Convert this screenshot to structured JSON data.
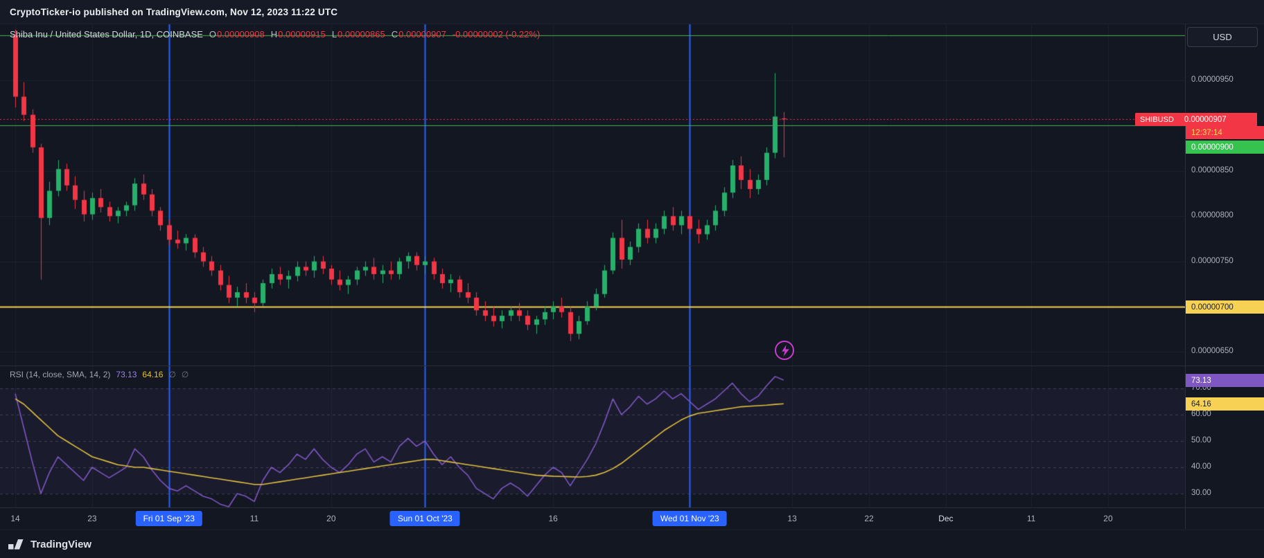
{
  "header": {
    "attribution": "CryptoTicker-io published on TradingView.com, Nov 12, 2023 11:22 UTC"
  },
  "main_legend": {
    "title": "Shiba Inu / United States Dollar, 1D, COINBASE",
    "open_label": "O",
    "open": "0.00000908",
    "high_label": "H",
    "high": "0.00000915",
    "low_label": "L",
    "low": "0.00000865",
    "close_label": "C",
    "close": "0.00000907",
    "change": "-0.00000002 (-0.22%)"
  },
  "price_axis": {
    "currency": "USD",
    "labels": [
      {
        "text": "0.00000950",
        "value": 9.5
      },
      {
        "text": "0.00000850",
        "value": 8.5
      },
      {
        "text": "0.00000800",
        "value": 8.0
      },
      {
        "text": "0.00000750",
        "value": 7.5
      },
      {
        "text": "0.00000650",
        "value": 6.5
      }
    ],
    "symbol_badge": {
      "symbol": "SHIBUSD",
      "price": "0.00000907",
      "countdown": "12:37:14"
    },
    "alert_badges": [
      {
        "text": "0.00000900",
        "color": "green",
        "value": 9.0
      },
      {
        "text": "0.00000700",
        "color": "yellow",
        "value": 7.0
      }
    ],
    "rsi_badges": [
      {
        "text": "73.13",
        "color": "purple",
        "value": 73.13
      },
      {
        "text": "64.16",
        "color": "yellow",
        "value": 64.16
      }
    ],
    "rsi_labels": [
      {
        "text": "70.00",
        "value": 70
      },
      {
        "text": "60.00",
        "value": 60
      },
      {
        "text": "50.00",
        "value": 50
      },
      {
        "text": "40.00",
        "value": 40
      },
      {
        "text": "30.00",
        "value": 30
      }
    ]
  },
  "rsi_legend": {
    "title": "RSI (14, close, SMA, 14, 2)",
    "value": "73.13",
    "sma_value": "64.16",
    "empty1": "∅",
    "empty2": "∅"
  },
  "footer": {
    "brand": "TradingView"
  },
  "chart_data": {
    "type": "candlestick+rsi",
    "symbol": "SHIBUSD",
    "exchange": "COINBASE",
    "interval": "1D",
    "start_date": "2023-08-14",
    "end_date": "2023-11-12",
    "price_unit": "1e-6 USD",
    "price_ylim": [
      6.35,
      10.12
    ],
    "grid_prices": [
      9.5,
      9.0,
      8.5,
      8.0,
      7.5,
      7.0,
      6.5
    ],
    "last_price": 9.07,
    "levels": [
      {
        "value": 10.0,
        "color": "#4caf50",
        "width": 1,
        "style": "solid",
        "name": "green-level-0.00001000"
      },
      {
        "value": 9.0,
        "color": "#4caf50",
        "width": 1,
        "style": "solid",
        "name": "green-level-0.00000900"
      },
      {
        "value": 7.0,
        "color": "#f7d154",
        "width": 2,
        "style": "solid",
        "name": "yellow-level-0.00000700"
      },
      {
        "value": 9.07,
        "color": "#f23645",
        "width": 1,
        "style": "dotted",
        "name": "last-price-line"
      }
    ],
    "event_line_indices": [
      18,
      48,
      79
    ],
    "x_ticks": [
      {
        "label": "14",
        "i": 0
      },
      {
        "label": "23",
        "i": 9
      },
      {
        "label": "Fri 01 Sep '23",
        "i": 18,
        "badge": true
      },
      {
        "label": "11",
        "i": 28
      },
      {
        "label": "20",
        "i": 37
      },
      {
        "label": "Sun 01 Oct '23",
        "i": 48,
        "badge": true
      },
      {
        "label": "16",
        "i": 63
      },
      {
        "label": "Wed 01 Nov '23",
        "i": 79,
        "badge": true
      },
      {
        "label": "13",
        "i": 91
      },
      {
        "label": "22",
        "i": 100
      },
      {
        "label": "Dec",
        "i": 109,
        "major": true
      },
      {
        "label": "11",
        "i": 119
      },
      {
        "label": "20",
        "i": 128
      }
    ],
    "candles": [
      [
        10.0,
        10.06,
        9.2,
        9.32
      ],
      [
        9.32,
        9.48,
        9.05,
        9.12
      ],
      [
        9.12,
        9.18,
        8.7,
        8.76
      ],
      [
        8.76,
        8.8,
        7.3,
        7.98
      ],
      [
        7.98,
        8.38,
        7.9,
        8.28
      ],
      [
        8.28,
        8.62,
        8.22,
        8.52
      ],
      [
        8.52,
        8.58,
        8.28,
        8.34
      ],
      [
        8.34,
        8.44,
        8.08,
        8.18
      ],
      [
        8.18,
        8.28,
        7.94,
        8.02
      ],
      [
        8.02,
        8.26,
        7.96,
        8.2
      ],
      [
        8.2,
        8.3,
        8.04,
        8.1
      ],
      [
        8.1,
        8.16,
        7.94,
        8.0
      ],
      [
        8.0,
        8.1,
        7.92,
        8.06
      ],
      [
        8.06,
        8.16,
        8.0,
        8.12
      ],
      [
        8.12,
        8.42,
        8.06,
        8.36
      ],
      [
        8.36,
        8.46,
        8.18,
        8.24
      ],
      [
        8.24,
        8.3,
        8.0,
        8.06
      ],
      [
        8.06,
        8.1,
        7.84,
        7.9
      ],
      [
        7.9,
        7.96,
        7.68,
        7.74
      ],
      [
        7.74,
        7.84,
        7.64,
        7.7
      ],
      [
        7.7,
        7.8,
        7.62,
        7.76
      ],
      [
        7.76,
        7.8,
        7.54,
        7.6
      ],
      [
        7.6,
        7.66,
        7.44,
        7.5
      ],
      [
        7.5,
        7.56,
        7.34,
        7.4
      ],
      [
        7.4,
        7.46,
        7.18,
        7.24
      ],
      [
        7.24,
        7.34,
        7.04,
        7.1
      ],
      [
        7.1,
        7.22,
        7.0,
        7.16
      ],
      [
        7.16,
        7.26,
        7.04,
        7.1
      ],
      [
        7.1,
        7.16,
        6.94,
        7.04
      ],
      [
        7.04,
        7.3,
        7.0,
        7.26
      ],
      [
        7.26,
        7.42,
        7.2,
        7.36
      ],
      [
        7.36,
        7.44,
        7.24,
        7.3
      ],
      [
        7.3,
        7.4,
        7.2,
        7.34
      ],
      [
        7.34,
        7.5,
        7.28,
        7.44
      ],
      [
        7.44,
        7.5,
        7.34,
        7.4
      ],
      [
        7.4,
        7.56,
        7.32,
        7.5
      ],
      [
        7.5,
        7.56,
        7.36,
        7.42
      ],
      [
        7.42,
        7.46,
        7.24,
        7.3
      ],
      [
        7.3,
        7.4,
        7.18,
        7.24
      ],
      [
        7.24,
        7.34,
        7.14,
        7.3
      ],
      [
        7.3,
        7.44,
        7.24,
        7.4
      ],
      [
        7.4,
        7.5,
        7.34,
        7.44
      ],
      [
        7.44,
        7.54,
        7.3,
        7.36
      ],
      [
        7.36,
        7.46,
        7.26,
        7.4
      ],
      [
        7.4,
        7.5,
        7.3,
        7.36
      ],
      [
        7.36,
        7.54,
        7.3,
        7.5
      ],
      [
        7.5,
        7.6,
        7.42,
        7.56
      ],
      [
        7.56,
        7.6,
        7.4,
        7.46
      ],
      [
        7.46,
        7.56,
        7.36,
        7.5
      ],
      [
        7.5,
        7.54,
        7.3,
        7.36
      ],
      [
        7.36,
        7.42,
        7.2,
        7.26
      ],
      [
        7.26,
        7.36,
        7.16,
        7.3
      ],
      [
        7.3,
        7.34,
        7.1,
        7.16
      ],
      [
        7.16,
        7.26,
        7.04,
        7.1
      ],
      [
        7.1,
        7.16,
        6.9,
        6.96
      ],
      [
        6.96,
        7.06,
        6.84,
        6.9
      ],
      [
        6.9,
        7.0,
        6.78,
        6.84
      ],
      [
        6.84,
        6.96,
        6.76,
        6.9
      ],
      [
        6.9,
        7.0,
        6.84,
        6.96
      ],
      [
        6.96,
        7.04,
        6.84,
        6.9
      ],
      [
        6.9,
        6.96,
        6.74,
        6.8
      ],
      [
        6.8,
        6.9,
        6.7,
        6.86
      ],
      [
        6.86,
        7.0,
        6.8,
        6.94
      ],
      [
        6.94,
        7.06,
        6.86,
        7.0
      ],
      [
        7.0,
        7.1,
        6.88,
        6.94
      ],
      [
        6.94,
        7.0,
        6.62,
        6.7
      ],
      [
        6.7,
        6.9,
        6.64,
        6.84
      ],
      [
        6.84,
        7.06,
        6.8,
        7.0
      ],
      [
        7.0,
        7.2,
        6.96,
        7.14
      ],
      [
        7.14,
        7.46,
        7.1,
        7.4
      ],
      [
        7.4,
        7.82,
        7.36,
        7.76
      ],
      [
        7.76,
        7.96,
        7.42,
        7.52
      ],
      [
        7.52,
        7.72,
        7.46,
        7.66
      ],
      [
        7.66,
        7.92,
        7.6,
        7.86
      ],
      [
        7.86,
        7.96,
        7.7,
        7.76
      ],
      [
        7.76,
        7.92,
        7.7,
        7.86
      ],
      [
        7.86,
        8.06,
        7.8,
        8.0
      ],
      [
        8.0,
        8.1,
        7.84,
        7.9
      ],
      [
        7.9,
        8.06,
        7.8,
        8.0
      ],
      [
        8.0,
        8.06,
        7.8,
        7.86
      ],
      [
        7.86,
        7.96,
        7.7,
        7.8
      ],
      [
        7.8,
        7.96,
        7.74,
        7.9
      ],
      [
        7.9,
        8.12,
        7.84,
        8.06
      ],
      [
        8.06,
        8.32,
        8.0,
        8.26
      ],
      [
        8.26,
        8.62,
        8.2,
        8.56
      ],
      [
        8.56,
        8.66,
        8.3,
        8.4
      ],
      [
        8.4,
        8.52,
        8.2,
        8.3
      ],
      [
        8.3,
        8.46,
        8.24,
        8.4
      ],
      [
        8.4,
        8.76,
        8.34,
        8.7
      ],
      [
        8.7,
        9.58,
        8.64,
        9.1
      ],
      [
        9.08,
        9.15,
        8.65,
        9.07
      ]
    ],
    "rsi_ylim": [
      24.73,
      78.68
    ],
    "rsi_grid": [
      70,
      60,
      50,
      40,
      30
    ],
    "rsi": [
      68,
      55,
      42,
      30,
      38,
      44,
      41,
      38,
      35,
      40,
      38,
      36,
      38,
      40,
      47,
      44,
      39,
      35,
      32,
      31,
      33,
      31,
      29,
      28,
      26,
      25,
      30,
      29,
      27,
      35,
      40,
      38,
      41,
      45,
      43,
      47,
      43,
      40,
      38,
      41,
      45,
      47,
      42,
      44,
      42,
      48,
      51,
      48,
      50,
      45,
      41,
      44,
      40,
      37,
      32,
      30,
      28,
      32,
      34,
      32,
      29,
      33,
      37,
      40,
      38,
      33,
      38,
      43,
      49,
      57,
      66,
      60,
      63,
      67,
      64,
      66,
      69,
      66,
      68,
      65,
      62,
      64,
      66,
      69,
      72,
      68,
      65,
      67,
      71,
      74.5,
      73.13
    ],
    "rsi_sma": [
      66,
      64,
      61,
      58,
      55,
      52,
      50,
      48,
      46,
      44,
      43,
      42,
      41,
      40.5,
      40,
      40,
      39.5,
      39,
      38.5,
      38,
      37.5,
      37,
      36.5,
      36,
      35.5,
      35,
      34.5,
      34,
      33.5,
      33.5,
      34,
      34.5,
      35,
      35.5,
      36,
      36.5,
      37,
      37.5,
      38,
      38.5,
      39,
      39.5,
      40,
      40.5,
      41,
      41.5,
      42,
      42.5,
      43,
      43,
      42.5,
      42,
      41.5,
      41,
      40.5,
      40,
      39.5,
      39,
      38.5,
      38,
      37.5,
      37,
      36.8,
      36.6,
      36.5,
      36.4,
      36.3,
      36.5,
      37,
      38,
      39.5,
      41.5,
      44,
      46.5,
      49,
      51.5,
      54,
      56,
      58,
      59.5,
      60.5,
      61,
      61.5,
      62,
      62.5,
      63,
      63.2,
      63.4,
      63.6,
      63.9,
      64.16
    ],
    "colors": {
      "up": "#26b06a",
      "down": "#f23645",
      "event_line": "#2962ff",
      "rsi_line": "#7e57c2",
      "rsi_ma": "#e2c23f",
      "grid": "rgba(158,168,192,0.07)",
      "rsi_dash": "rgba(160,165,180,0.28)",
      "rsi_band": "rgba(126,87,194,0.07)"
    }
  }
}
